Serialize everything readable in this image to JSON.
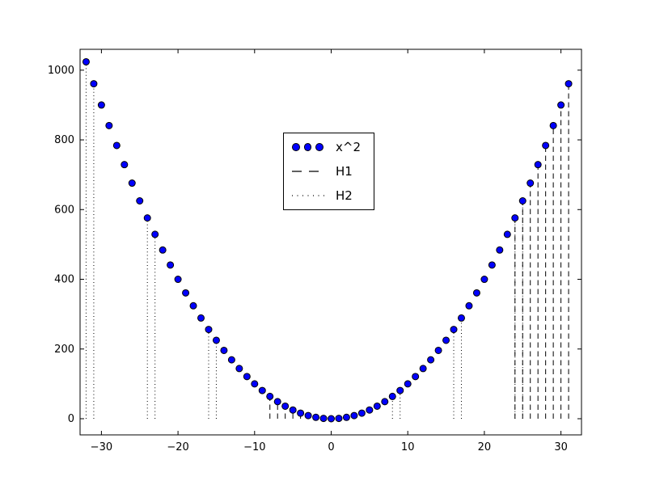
{
  "chart_data": {
    "type": "scatter",
    "title": "",
    "xlabel": "",
    "ylabel": "",
    "background": "#ffffff",
    "axes": {
      "xlim": [
        -33,
        33
      ],
      "ylim": [
        -46,
        1060
      ],
      "grid": false,
      "tick_direction": "in",
      "frame_color": "#000000",
      "xticks": [
        {
          "value": -30,
          "label": "−30"
        },
        {
          "value": -20,
          "label": "−20"
        },
        {
          "value": -10,
          "label": "−10"
        },
        {
          "value": 0,
          "label": "0"
        },
        {
          "value": 10,
          "label": "10"
        },
        {
          "value": 20,
          "label": "20"
        },
        {
          "value": 30,
          "label": "30"
        }
      ],
      "yticks": [
        {
          "value": 0,
          "label": "0"
        },
        {
          "value": 200,
          "label": "200"
        },
        {
          "value": 400,
          "label": "400"
        },
        {
          "value": 600,
          "label": "600"
        },
        {
          "value": 800,
          "label": "800"
        },
        {
          "value": 1000,
          "label": "1000"
        }
      ]
    },
    "series": [
      {
        "name": "x^2",
        "type": "scatter",
        "marker": "circle",
        "marker_fill": "#0000ff",
        "marker_edge": "#000000",
        "x": [
          -32,
          -31,
          -30,
          -29,
          -28,
          -27,
          -26,
          -25,
          -24,
          -23,
          -22,
          -21,
          -20,
          -19,
          -18,
          -17,
          -16,
          -15,
          -14,
          -13,
          -12,
          -11,
          -10,
          -9,
          -8,
          -7,
          -6,
          -5,
          -4,
          -3,
          -2,
          -1,
          0,
          1,
          2,
          3,
          4,
          5,
          6,
          7,
          8,
          9,
          10,
          11,
          12,
          13,
          14,
          15,
          16,
          17,
          18,
          19,
          20,
          21,
          22,
          23,
          24,
          25,
          26,
          27,
          28,
          29,
          30,
          31
        ],
        "y": [
          1024,
          961,
          900,
          841,
          784,
          729,
          676,
          625,
          576,
          529,
          484,
          441,
          400,
          361,
          324,
          289,
          256,
          225,
          196,
          169,
          144,
          121,
          100,
          81,
          64,
          49,
          36,
          25,
          16,
          9,
          4,
          1,
          0,
          1,
          4,
          9,
          16,
          25,
          36,
          49,
          64,
          81,
          100,
          121,
          144,
          169,
          196,
          225,
          256,
          289,
          324,
          361,
          400,
          441,
          484,
          529,
          576,
          625,
          676,
          729,
          784,
          841,
          900,
          961
        ]
      }
    ],
    "vlines": [
      {
        "name": "H1",
        "style": "dashed",
        "color": "#000000",
        "base": 0,
        "top": "x^2",
        "x": [
          -8,
          -7,
          -6,
          -5,
          -4,
          24,
          25,
          26,
          27,
          28,
          29,
          30,
          31
        ]
      },
      {
        "name": "H2",
        "style": "dotted",
        "color": "#000000",
        "base": 0,
        "top": "x^2",
        "x": [
          -32,
          -31,
          -24,
          -23,
          -16,
          -15,
          8,
          9,
          16,
          17,
          24,
          25
        ]
      }
    ],
    "legend": {
      "position": "upper left-of-center",
      "border_color": "#000000",
      "background": "#ffffff",
      "entries": [
        {
          "label": "x^2",
          "type": "markers",
          "color": "#0000ff"
        },
        {
          "label": "H1",
          "type": "dashed-line",
          "color": "#000000"
        },
        {
          "label": "H2",
          "type": "dotted-line",
          "color": "#000000"
        }
      ]
    }
  }
}
